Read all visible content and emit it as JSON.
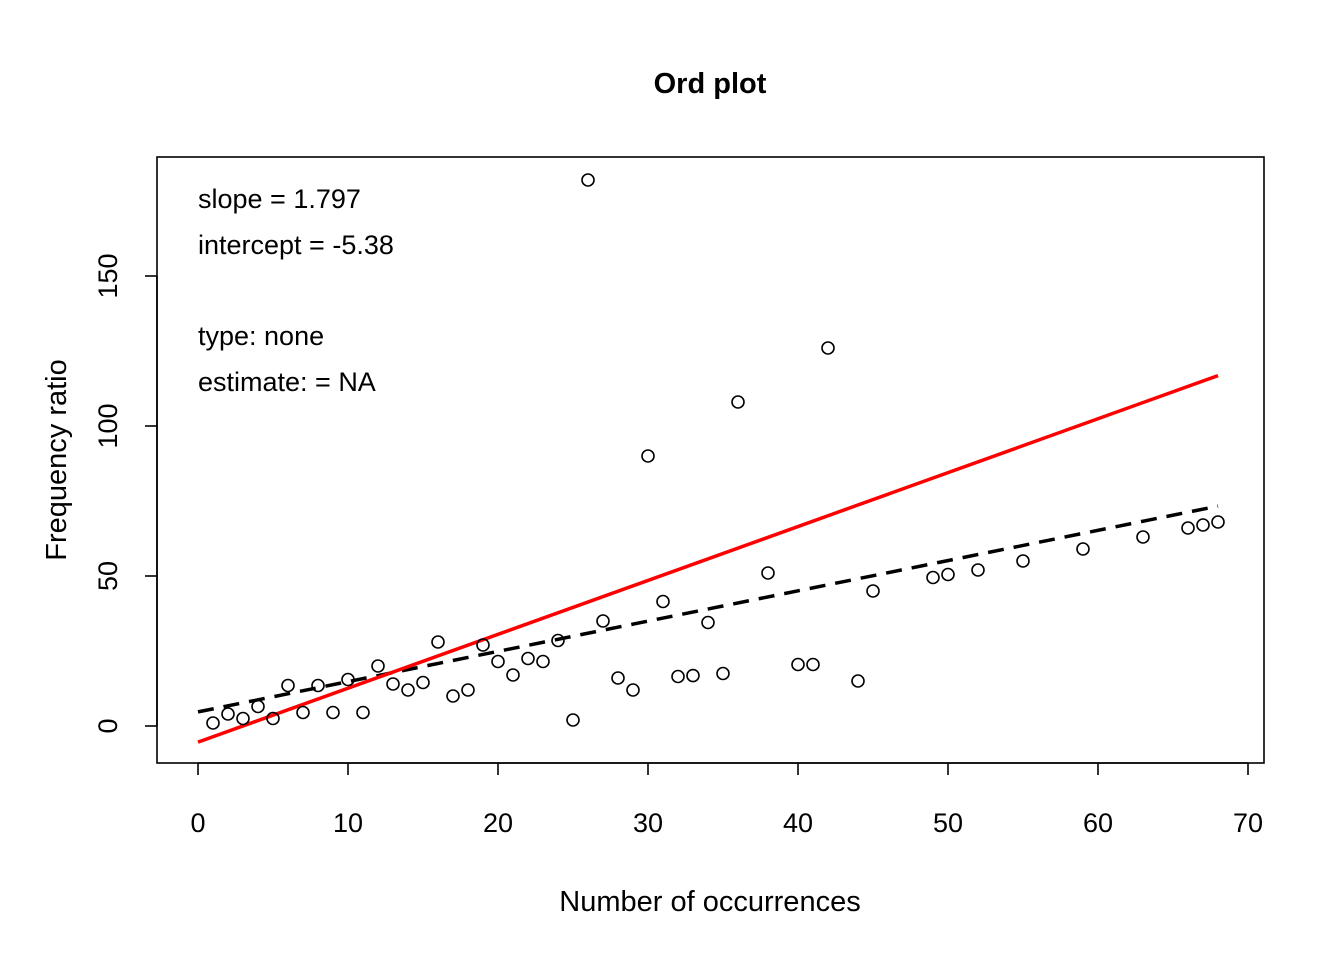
{
  "chart_data": {
    "type": "scatter",
    "title": "Ord plot",
    "xlabel": "Number of occurrences",
    "ylabel": "Frequency ratio",
    "xlim": [
      0,
      70
    ],
    "ylim": [
      -12,
      190
    ],
    "xticks": [
      "0",
      "10",
      "20",
      "30",
      "40",
      "50",
      "60",
      "70"
    ],
    "yticks": [
      "0",
      "50",
      "100",
      "150"
    ],
    "grid": false,
    "points": [
      [
        1,
        1
      ],
      [
        2,
        4
      ],
      [
        3,
        2.5
      ],
      [
        4,
        6.5
      ],
      [
        5,
        2.5
      ],
      [
        6,
        13.5
      ],
      [
        7,
        4.5
      ],
      [
        8,
        13.5
      ],
      [
        9,
        4.5
      ],
      [
        10,
        15.5
      ],
      [
        11,
        4.5
      ],
      [
        12,
        20
      ],
      [
        13,
        14
      ],
      [
        14,
        12
      ],
      [
        15,
        14.5
      ],
      [
        16,
        28
      ],
      [
        17,
        10
      ],
      [
        18,
        12
      ],
      [
        19,
        27
      ],
      [
        20,
        21.5
      ],
      [
        21,
        17
      ],
      [
        22,
        22.5
      ],
      [
        23,
        21.5
      ],
      [
        24,
        28.5
      ],
      [
        25,
        2
      ],
      [
        26,
        182
      ],
      [
        27,
        35
      ],
      [
        28,
        16
      ],
      [
        29,
        12
      ],
      [
        30,
        90
      ],
      [
        31,
        41.5
      ],
      [
        32,
        16.5
      ],
      [
        33,
        16.8
      ],
      [
        34,
        34.5
      ],
      [
        35,
        17.5
      ],
      [
        36,
        108
      ],
      [
        38,
        51
      ],
      [
        40,
        20.5
      ],
      [
        41,
        20.5
      ],
      [
        42,
        126
      ],
      [
        44,
        15
      ],
      [
        45,
        45
      ],
      [
        49,
        49.5
      ],
      [
        50,
        50.5
      ],
      [
        52,
        52
      ],
      [
        55,
        55
      ],
      [
        59,
        59
      ],
      [
        63,
        63
      ],
      [
        66,
        66
      ],
      [
        67,
        67
      ],
      [
        68,
        68
      ]
    ],
    "fitted_line": {
      "color": "#ff0000",
      "style": "solid",
      "x": [
        0,
        68
      ],
      "y": [
        -5.38,
        116.8
      ]
    },
    "weighted_line": {
      "color": "#000000",
      "style": "dashed",
      "x": [
        0,
        68
      ],
      "y": [
        4.7,
        73.3
      ]
    },
    "annotations": [
      "slope = 1.797",
      "intercept = -5.38",
      "type: none",
      "estimate:  = NA"
    ]
  }
}
